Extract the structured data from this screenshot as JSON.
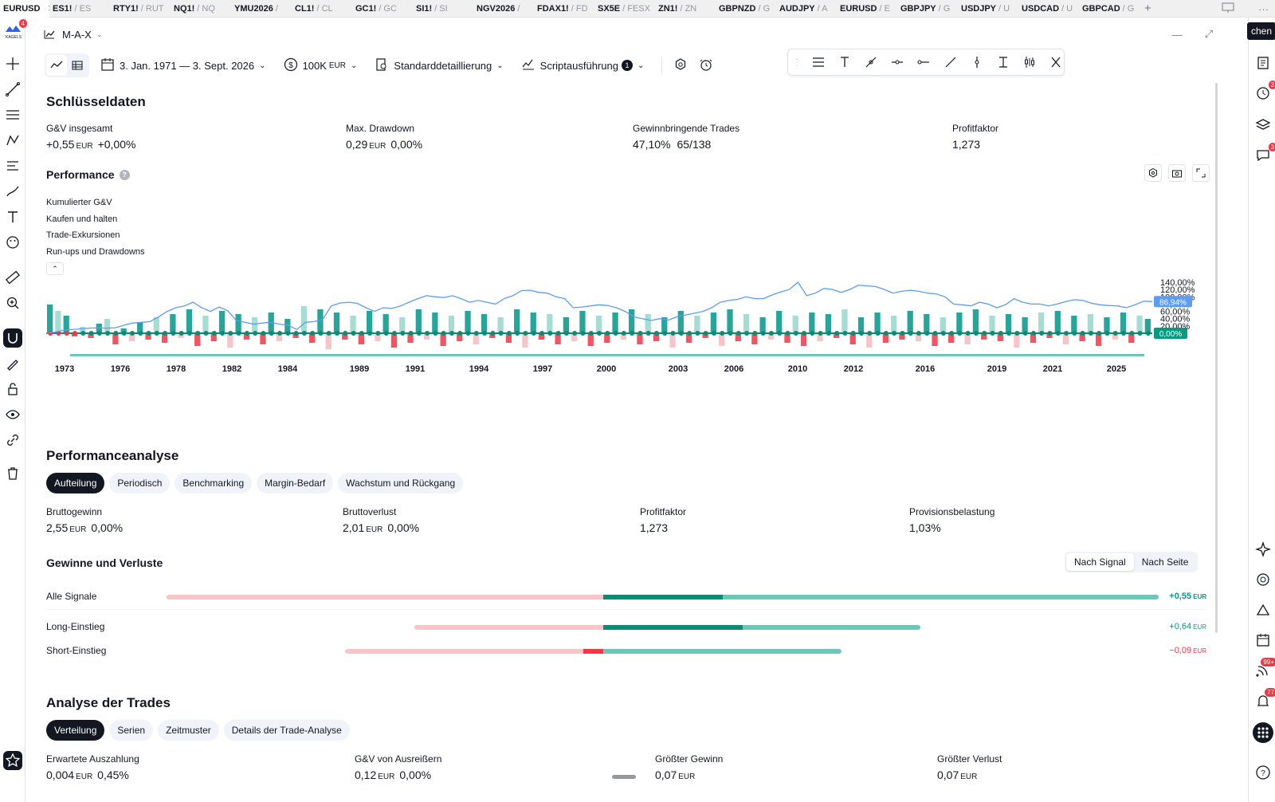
{
  "tabs": [
    {
      "sym": "EURUSD",
      "ex": "",
      "active": true
    },
    {
      "sym": "ES1!",
      "ex": "/ ES"
    },
    {
      "sym": "RTY1!",
      "ex": "/ RUT"
    },
    {
      "sym": "NQ1!",
      "ex": "/ NQ"
    },
    {
      "sym": "YMU2026",
      "ex": "/"
    },
    {
      "sym": "CL1!",
      "ex": "/ CL"
    },
    {
      "sym": "GC1!",
      "ex": "/ GC"
    },
    {
      "sym": "SI1!",
      "ex": "/ SI"
    },
    {
      "sym": "NGV2026",
      "ex": "/"
    },
    {
      "sym": "FDAX1!",
      "ex": "/ FD"
    },
    {
      "sym": "SX5E",
      "ex": "/ FESX"
    },
    {
      "sym": "ZN1!",
      "ex": "/ ZN"
    },
    {
      "sym": "GBPNZD",
      "ex": "/ G"
    },
    {
      "sym": "AUDJPY",
      "ex": "/ A"
    },
    {
      "sym": "EURUSD",
      "ex": "/ E"
    },
    {
      "sym": "GBPJPY",
      "ex": "/ G"
    },
    {
      "sym": "USDJPY",
      "ex": "/ U"
    },
    {
      "sym": "USDCAD",
      "ex": "/ U"
    },
    {
      "sym": "GBPCAD",
      "ex": "/ G"
    }
  ],
  "strategy_name": "M-A-X",
  "cut_button": "chen",
  "logo_badge": "4",
  "toolbar": {
    "date_range": "3. Jan. 1971 — 3. Sept. 2026",
    "capital": "100K",
    "capital_cur": "EUR",
    "detail": "Standarddetaillierung",
    "script": "Scriptausführung",
    "script_badge": "1"
  },
  "key_data": {
    "title": "Schlüsseldaten",
    "items": [
      {
        "label": "G&V insgesamt",
        "value": "+0,55",
        "cur": "EUR",
        "pct": "+0,00%"
      },
      {
        "label": "Max. Drawdown",
        "value": "0,29",
        "cur": "EUR",
        "pct": "0,00%"
      },
      {
        "label": "Gewinnbringende Trades",
        "value": "47,10%",
        "cur": "",
        "pct": "65/138"
      },
      {
        "label": "Profitfaktor",
        "value": "1,273",
        "cur": "",
        "pct": ""
      }
    ]
  },
  "performance": {
    "title": "Performance",
    "legend": [
      "Kumulierter G&V",
      "Kaufen und halten",
      "Trade-Exkursionen",
      "Run-ups und Drawdowns"
    ]
  },
  "chart_data": {
    "type": "line",
    "y_ticks": [
      "140,00%",
      "120,00%",
      "100,00%",
      "80,00%",
      "60,00%",
      "40,00%",
      "20,00%"
    ],
    "ylim": [
      0,
      140
    ],
    "x_ticks": [
      "1973",
      "1976",
      "1978",
      "1982",
      "1984",
      "1989",
      "1991",
      "1994",
      "1997",
      "2000",
      "2003",
      "2006",
      "2010",
      "2012",
      "2016",
      "2019",
      "2021",
      "2025"
    ],
    "last_value_label": "86,94%",
    "zero_label": "0,00%",
    "series": [
      {
        "name": "Kumulierter G&V",
        "values": [
          0,
          3,
          8,
          10,
          12,
          14,
          15,
          14,
          15,
          22,
          28,
          30,
          32,
          45,
          60,
          70,
          75,
          85,
          70,
          60,
          72,
          62,
          35,
          30,
          25,
          28,
          30,
          25,
          22,
          10,
          30,
          32,
          38,
          75,
          83,
          85,
          82,
          70,
          60,
          70,
          68,
          75,
          85,
          95,
          103,
          100,
          98,
          103,
          95,
          85,
          90,
          85,
          80,
          95,
          103,
          117,
          118,
          112,
          110,
          100,
          95,
          70,
          72,
          75,
          78,
          76,
          70,
          60,
          45,
          40,
          35,
          40,
          36,
          45,
          50,
          55,
          60,
          70,
          85,
          90,
          93,
          100,
          95,
          95,
          105,
          113,
          120,
          140,
          103,
          110,
          123,
          120,
          112,
          120,
          132,
          130,
          128,
          120,
          110,
          115,
          118,
          115,
          110,
          108,
          100,
          80,
          78,
          75,
          85,
          80,
          70,
          78,
          95,
          85,
          80,
          80,
          75,
          80,
          87,
          92,
          90,
          82,
          78,
          76,
          75,
          70,
          78,
          88,
          86.94
        ]
      },
      {
        "name": "Trades",
        "values": [
          36,
          28,
          22,
          -4,
          8,
          -6,
          12,
          18,
          -14,
          6,
          -10,
          14,
          -8,
          20,
          -12,
          24,
          -6,
          30,
          -16,
          22,
          -10,
          28,
          -18,
          24,
          -8,
          20,
          -14,
          26,
          -10,
          18,
          -6,
          34,
          -12,
          30,
          -20,
          26,
          -8,
          22,
          -14,
          28,
          -10,
          24,
          -18,
          20,
          -12,
          30,
          -8,
          26,
          -16,
          22,
          -10,
          28,
          -14,
          24,
          -6,
          20,
          -12,
          30,
          -18,
          26,
          -8,
          24,
          -14,
          20,
          -10,
          28,
          -16,
          22,
          -12,
          26,
          -8,
          30,
          -14,
          24,
          -10,
          20,
          -18,
          28,
          -12,
          22,
          -6,
          26,
          -16,
          30,
          -10,
          24,
          -14,
          20,
          -8,
          28,
          -12,
          22,
          -16,
          26,
          -10,
          24,
          -6,
          30,
          -14,
          20,
          -18,
          26,
          -12,
          22,
          -8,
          28,
          -10,
          24,
          -16,
          20,
          -12,
          26,
          -14,
          30,
          -8,
          22,
          -10,
          24,
          -18,
          20,
          -12,
          26,
          -6,
          28,
          -14,
          22,
          -10,
          24,
          -16,
          20,
          -8,
          26,
          -12,
          22,
          18
        ]
      }
    ]
  },
  "analysis": {
    "title": "Performanceanalyse",
    "chips": [
      "Aufteilung",
      "Periodisch",
      "Benchmarking",
      "Margin-Bedarf",
      "Wachstum und Rückgang"
    ],
    "items": [
      {
        "label": "Bruttogewinn",
        "value": "2,55",
        "cur": "EUR",
        "pct": "0,00%"
      },
      {
        "label": "Bruttoverlust",
        "value": "2,01",
        "cur": "EUR",
        "pct": "0,00%"
      },
      {
        "label": "Profitfaktor",
        "value": "1,273",
        "cur": "",
        "pct": ""
      },
      {
        "label": "Provisionsbelastung",
        "value": "1,03%",
        "cur": "",
        "pct": ""
      }
    ]
  },
  "pnl": {
    "title": "Gewinne und Verluste",
    "seg": [
      "Nach Signal",
      "Nach Seite"
    ],
    "rows": [
      {
        "label": "Alle Signale",
        "value": "+0,55",
        "cur": "EUR",
        "neg_frac": 0.44,
        "pos_frac": 0.56
      },
      {
        "label": "Long-Einstieg",
        "value": "+0,64",
        "cur": "EUR",
        "neg_frac": 0.19,
        "pos_frac": 0.32
      },
      {
        "label": "Short-Einstieg",
        "value": "−0,09",
        "cur": "EUR",
        "neg_frac": 0.26,
        "pos_frac": 0.24
      }
    ]
  },
  "trades": {
    "title": "Analyse der Trades",
    "chips": [
      "Verteilung",
      "Serien",
      "Zeitmuster",
      "Details der Trade-Analyse"
    ],
    "items": [
      {
        "label": "Erwartete Auszahlung",
        "value": "0,004",
        "cur": "EUR",
        "pct": "0,45%"
      },
      {
        "label": "G&V von Ausreißern",
        "value": "0,12",
        "cur": "EUR",
        "pct": "0,00%"
      },
      {
        "label": "Größter Gewinn",
        "value": "0,07",
        "cur": "EUR",
        "pct": ""
      },
      {
        "label": "Größter Verlust",
        "value": "0,07",
        "cur": "EUR",
        "pct": ""
      }
    ]
  },
  "right_badges": {
    "alerts": "3",
    "chat": "3",
    "feed": "99+",
    "notif": "77"
  },
  "colors": {
    "green": "#26a69a",
    "green_dark": "#0b8a74",
    "green_light": "#a5ddd2",
    "red": "#f7525f",
    "red_light": "#f9c4c8",
    "blue": "#5b9cf6"
  }
}
